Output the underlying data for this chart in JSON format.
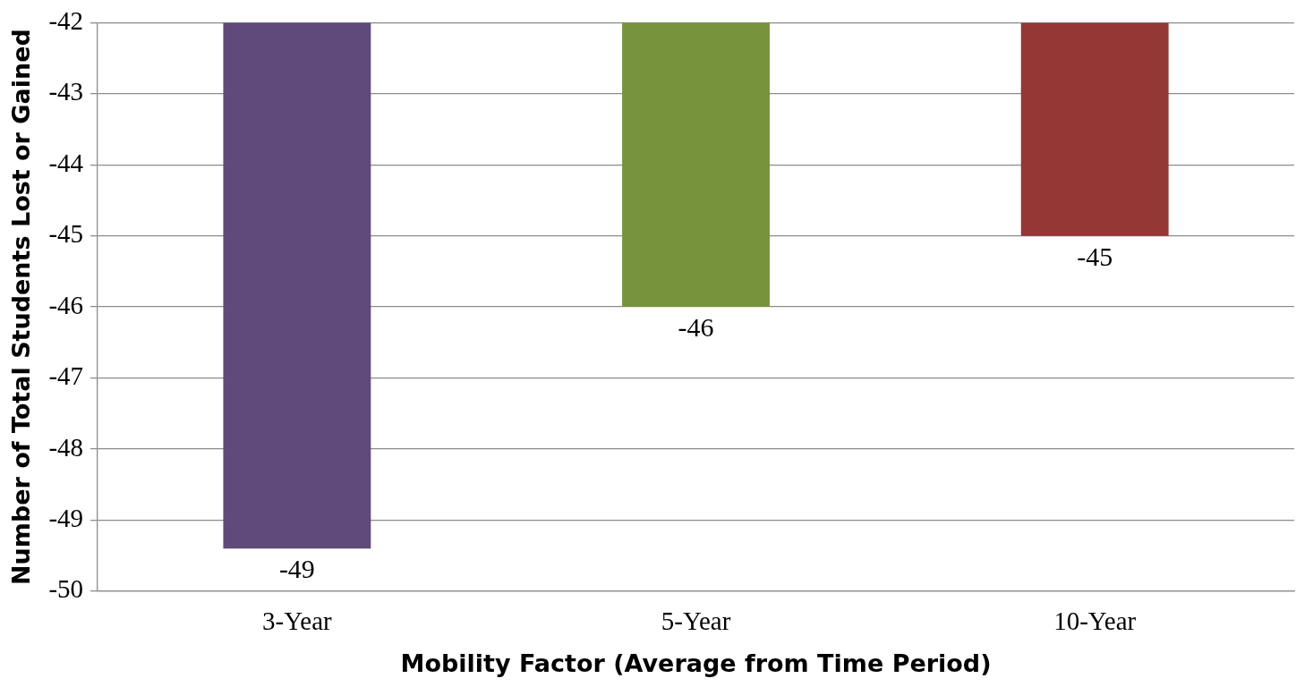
{
  "chart_data": {
    "type": "bar",
    "xlabel": "Mobility Factor (Average from Time Period)",
    "ylabel": "Number of Total Students Lost or Gained",
    "categories": [
      "3-Year",
      "5-Year",
      "10-Year"
    ],
    "values": [
      -49.4,
      -46,
      -45
    ],
    "colors": [
      "#604a7b",
      "#77933c",
      "#953735"
    ],
    "value_labels": [
      "-49",
      "-46",
      "-45"
    ],
    "ylim": [
      -50,
      -42
    ],
    "yticks": [
      -50,
      -49,
      -48,
      -47,
      -46,
      -45,
      -44,
      -43,
      -42
    ],
    "grid": "y",
    "legend": false
  }
}
